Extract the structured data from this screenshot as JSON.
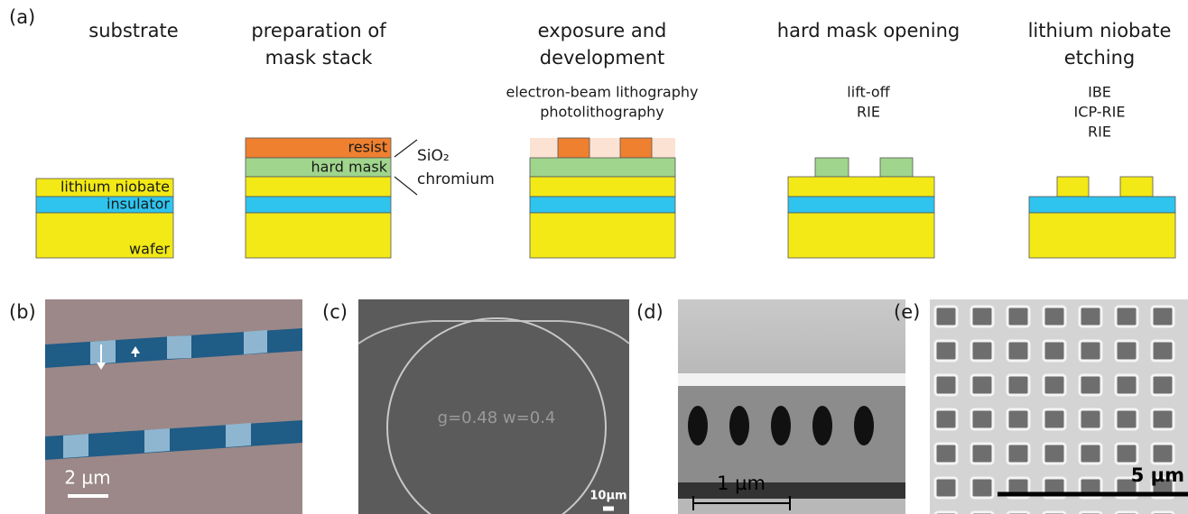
{
  "panel_a": {
    "label": "(a)",
    "steps": [
      {
        "title": [
          "substrate"
        ]
      },
      {
        "title": [
          "preparation of",
          "mask stack"
        ]
      },
      {
        "title": [
          "exposure and",
          "development"
        ],
        "methods": [
          "electron-beam lithography",
          "photolithography"
        ]
      },
      {
        "title": [
          "hard mask opening"
        ],
        "methods": [
          "lift-off",
          "RIE"
        ]
      },
      {
        "title": [
          "lithium niobate",
          "etching"
        ],
        "methods": [
          "IBE",
          "ICP-RIE",
          "RIE"
        ]
      }
    ],
    "layers": {
      "lithium_niobate": "lithium niobate",
      "insulator": "insulator",
      "wafer": "wafer",
      "resist": "resist",
      "hard_mask": "hard mask"
    },
    "mask_materials": [
      "SiO₂",
      "chromium"
    ]
  },
  "panels": [
    {
      "label": "(b)",
      "scale_bar": "2 µm"
    },
    {
      "label": "(c)",
      "scale_bar": "10µm",
      "annotation": "g=0.48 w=0.4"
    },
    {
      "label": "(d)",
      "scale_bar": "1 µm"
    },
    {
      "label": "(e)",
      "scale_bar": "5 µm"
    }
  ]
}
